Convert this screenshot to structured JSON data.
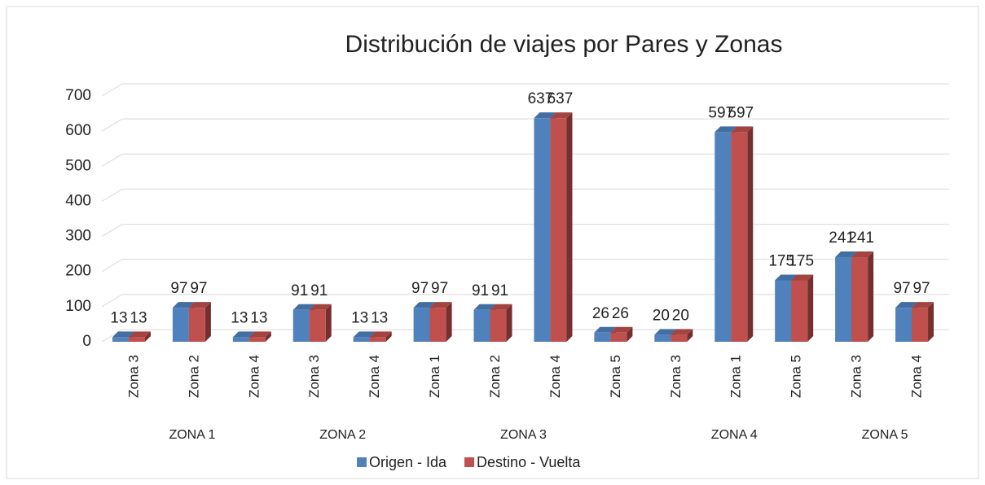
{
  "chart_data": {
    "type": "bar3d",
    "title": "Distribución de viajes por Pares y Zonas",
    "groups": [
      {
        "name": "ZONA 1",
        "categories": [
          "Zona 3",
          "Zona 2",
          "Zona 4"
        ]
      },
      {
        "name": "ZONA 2",
        "categories": [
          "Zona 3",
          "Zona 4"
        ]
      },
      {
        "name": "ZONA 3",
        "categories": [
          "Zona 1",
          "Zona 2",
          "Zona 4",
          "Zona 5"
        ]
      },
      {
        "name": "ZONA 4",
        "categories": [
          "Zona 3",
          "Zona 1",
          "Zona 5"
        ]
      },
      {
        "name": "ZONA 5",
        "categories": [
          "Zona 3",
          "Zona 4"
        ]
      }
    ],
    "series": [
      {
        "name": "Origen - Ida",
        "color": "#4f81bd",
        "values": [
          13,
          97,
          13,
          91,
          13,
          97,
          91,
          637,
          26,
          20,
          597,
          175,
          241,
          97
        ]
      },
      {
        "name": "Destino - Vuelta",
        "color": "#c0504d",
        "values": [
          13,
          97,
          13,
          91,
          13,
          97,
          91,
          637,
          26,
          20,
          597,
          175,
          241,
          97
        ]
      }
    ],
    "ylim": [
      0,
      700
    ],
    "yticks": [
      0,
      100,
      200,
      300,
      400,
      500,
      600,
      700
    ],
    "grid": true
  }
}
